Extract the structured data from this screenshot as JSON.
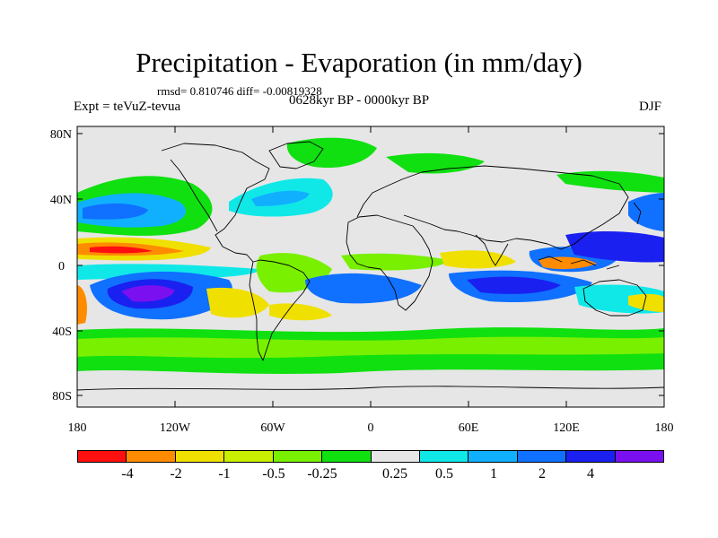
{
  "title": "Precipitation - Evaporation (in mm/day)",
  "stats": "rmsd= 0.810746 diff= -0.00819328",
  "experiment": "Expt = teVuZ-tevua",
  "period": "0628kyr BP - 0000kyr BP",
  "season": "DJF",
  "map": {
    "lat_labels": [
      "80N",
      "40N",
      "0",
      "40S",
      "80S"
    ],
    "lon_labels": [
      "180",
      "120W",
      "60W",
      "0",
      "60E",
      "120E",
      "180"
    ]
  },
  "colorbar": {
    "labels": [
      "-4",
      "-2",
      "-1",
      "-0.5",
      "-0.25",
      "0.25",
      "0.5",
      "1",
      "2",
      "4"
    ],
    "colors": [
      "#ff1010",
      "#ff8c00",
      "#f0e000",
      "#c8f000",
      "#78f000",
      "#10e010",
      "#e6e6e6",
      "#10e8e8",
      "#10b0ff",
      "#1070ff",
      "#1a20f0",
      "#7a10f0"
    ]
  }
}
